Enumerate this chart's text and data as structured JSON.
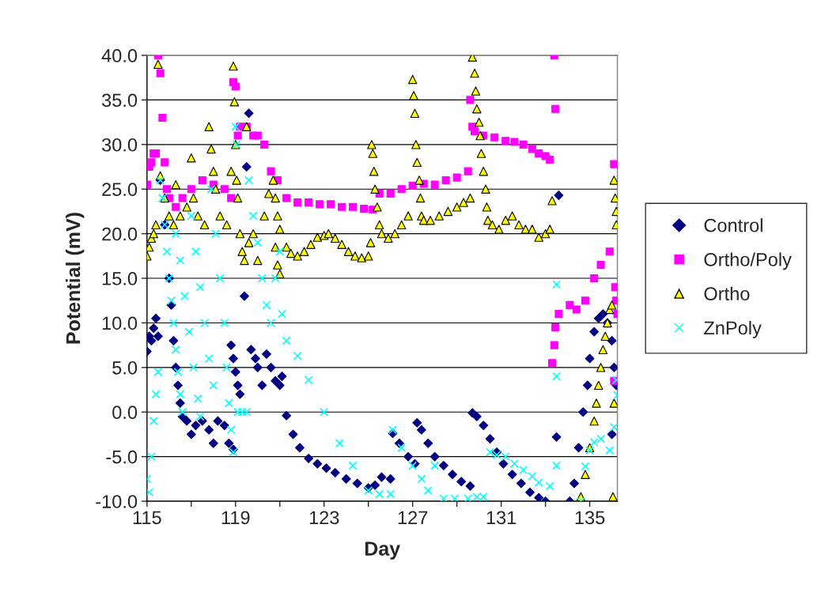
{
  "chart_data": {
    "type": "scatter",
    "xlabel": "Day",
    "ylabel": "Potential (mV)",
    "xlim": [
      115,
      136.25
    ],
    "ylim": [
      -10,
      40
    ],
    "xticks": [
      115,
      {
        "value": 117,
        "label": null
      },
      119,
      {
        "value": 121,
        "label": null
      },
      123,
      {
        "value": 125,
        "label": null
      },
      127,
      {
        "value": 129,
        "label": null
      },
      131,
      {
        "value": 133,
        "label": null
      },
      135
    ],
    "yticks": [
      {
        "value": -10,
        "label": "-10.0"
      },
      {
        "value": -5,
        "label": "-5.0"
      },
      {
        "value": 0,
        "label": "0.0"
      },
      {
        "value": 5,
        "label": "5.0"
      },
      {
        "value": 10,
        "label": "10.0"
      },
      {
        "value": 15,
        "label": "15.0"
      },
      {
        "value": 20,
        "label": "20.0"
      },
      {
        "value": 25,
        "label": "25.0"
      },
      {
        "value": 30,
        "label": "30.0"
      },
      {
        "value": 35,
        "label": "35.0"
      },
      {
        "value": 40,
        "label": "40.0"
      }
    ],
    "grid": "y",
    "legend": "right",
    "series": [
      {
        "name": "Control",
        "color": "#000080",
        "marker": "diamond",
        "x": [
          115.0,
          115.1,
          115.2,
          115.3,
          115.4,
          115.5,
          115.6,
          115.8,
          116.0,
          116.1,
          116.2,
          116.3,
          116.4,
          116.5,
          116.6,
          116.8,
          117.0,
          117.2,
          117.5,
          117.8,
          118.0,
          118.2,
          118.5,
          118.7,
          118.9,
          118.8,
          118.9,
          119.0,
          119.1,
          119.2,
          119.4,
          119.5,
          119.6,
          119.7,
          119.9,
          120.0,
          120.2,
          120.4,
          120.6,
          120.8,
          121.0,
          121.1,
          121.3,
          121.6,
          121.9,
          122.3,
          122.7,
          123.1,
          123.5,
          124.0,
          124.5,
          125.0,
          125.3,
          125.6,
          126.0,
          126.1,
          126.4,
          126.8,
          127.1,
          127.2,
          127.4,
          127.7,
          128.0,
          128.4,
          128.8,
          129.2,
          129.6,
          129.7,
          129.9,
          130.2,
          130.5,
          130.8,
          131.1,
          131.5,
          131.9,
          132.3,
          132.7,
          133.0,
          133.5,
          133.6,
          134.1,
          134.3,
          134.5,
          134.7,
          134.9,
          135.0,
          135.2,
          135.4,
          135.6,
          135.8,
          136.0,
          136.1,
          136.2,
          136.0
        ],
        "values": [
          6.8,
          8.5,
          8,
          9.4,
          10.5,
          8.5,
          26,
          21,
          15,
          12,
          8,
          5,
          3,
          1,
          -0.5,
          -1,
          -2.5,
          -1.5,
          -1,
          -2,
          -3.5,
          -1,
          -1.5,
          -3.5,
          -4.2,
          7.5,
          6,
          4.5,
          3,
          2,
          13,
          27.5,
          33.5,
          7,
          6,
          5,
          3,
          6.5,
          5,
          3.5,
          3,
          4,
          -0.4,
          -2.5,
          -4,
          -5.2,
          -5.8,
          -6.3,
          -6.8,
          -7.5,
          -8,
          -8.5,
          -8.2,
          -7.3,
          -7.5,
          -2.4,
          -3.5,
          -5,
          -5.8,
          -1.2,
          -2,
          -3.5,
          -5,
          -6,
          -7,
          -7.8,
          -8.3,
          -0.1,
          -0.5,
          -1.5,
          -3,
          -4.5,
          -5.8,
          -7,
          -8,
          -9,
          -9.6,
          -10,
          -2.8,
          24.3,
          -10,
          -8,
          -4,
          0,
          3,
          6,
          9,
          10.5,
          11,
          10,
          8,
          5,
          3,
          -2.5
        ]
      },
      {
        "name": "Ortho/Poly",
        "color": "#ff00ff",
        "marker": "square",
        "x": [
          115.0,
          115.1,
          115.2,
          115.3,
          115.4,
          115.5,
          115.6,
          115.7,
          115.8,
          115.9,
          116.0,
          116.3,
          116.6,
          117.0,
          117.5,
          118.0,
          118.5,
          118.8,
          118.9,
          119.0,
          119.1,
          119.2,
          119.5,
          119.8,
          120.0,
          120.3,
          120.6,
          120.9,
          121.3,
          121.8,
          122.3,
          122.8,
          123.3,
          123.8,
          124.3,
          124.8,
          125.2,
          125.5,
          126.0,
          126.5,
          127.0,
          127.5,
          128.0,
          128.5,
          129.0,
          129.5,
          129.6,
          129.7,
          129.8,
          130.2,
          130.7,
          131.2,
          131.6,
          132.0,
          132.4,
          132.7,
          133.0,
          133.2,
          133.4,
          133.45,
          133.3,
          133.4,
          133.45,
          133.6,
          134.1,
          134.4,
          134.8,
          135.2,
          135.5,
          135.9,
          136.1,
          136.15,
          136.2,
          136.1,
          136.25
        ],
        "values": [
          25.5,
          27.5,
          28,
          29,
          29,
          40,
          38,
          33,
          28,
          25,
          24,
          23,
          24,
          25,
          26,
          25.5,
          25,
          24,
          37,
          36.5,
          31,
          32,
          32,
          31,
          31,
          30,
          27,
          26,
          24,
          23.5,
          23.5,
          23.3,
          23.3,
          23,
          23,
          22.8,
          22.7,
          24.5,
          24.5,
          25,
          25.4,
          25.6,
          25.5,
          26,
          26.3,
          27,
          35,
          32,
          31.5,
          31,
          30.8,
          30.4,
          30.3,
          30,
          29.5,
          29,
          28.7,
          28.3,
          40,
          34,
          5.5,
          7.5,
          9.5,
          11,
          12,
          11.5,
          12.5,
          15,
          16.5,
          18,
          27.8,
          14,
          12.5,
          3.5,
          11
        ]
      },
      {
        "name": "Ortho",
        "color": "#ffff00",
        "marker": "triangle",
        "x": [
          115.0,
          115.1,
          115.2,
          115.3,
          115.4,
          115.5,
          115.6,
          115.8,
          116.0,
          116.2,
          116.3,
          116.5,
          116.8,
          117.0,
          117.1,
          117.3,
          117.6,
          117.8,
          117.9,
          118.0,
          118.1,
          118.3,
          118.6,
          118.8,
          118.9,
          118.95,
          119.0,
          119.05,
          119.1,
          119.2,
          119.3,
          119.4,
          119.6,
          119.5,
          119.8,
          120.0,
          120.3,
          120.5,
          120.7,
          120.8,
          120.9,
          121.0,
          120.8,
          120.9,
          121.0,
          121.3,
          121.5,
          121.8,
          122.1,
          122.4,
          122.7,
          123.0,
          123.2,
          123.5,
          123.8,
          124.1,
          124.4,
          124.7,
          125.0,
          125.1,
          125.15,
          125.2,
          125.25,
          125.3,
          125.4,
          125.5,
          125.6,
          125.9,
          126.2,
          126.5,
          126.8,
          127.0,
          127.05,
          127.1,
          127.15,
          127.2,
          127.3,
          127.35,
          127.4,
          127.5,
          127.8,
          128.2,
          128.6,
          129.0,
          129.3,
          129.6,
          129.7,
          129.8,
          129.85,
          129.9,
          130.0,
          130.05,
          130.1,
          130.2,
          130.3,
          130.35,
          130.4,
          130.6,
          130.9,
          131.2,
          131.5,
          131.8,
          132.1,
          132.4,
          132.7,
          133.0,
          133.2,
          133.3,
          134.6,
          134.8,
          135.0,
          135.2,
          135.3,
          135.4,
          135.5,
          135.6,
          135.7,
          135.8,
          135.9,
          136.0,
          136.1,
          136.05,
          136.1,
          136.15,
          136.2,
          136.2
        ],
        "values": [
          17.5,
          18.5,
          19.5,
          20,
          21,
          39,
          26.5,
          24,
          22,
          21,
          25.5,
          22,
          23,
          28.5,
          24,
          22,
          21,
          32,
          29.5,
          27,
          25,
          22,
          21,
          27,
          38.8,
          34.8,
          30,
          26,
          24,
          20,
          18,
          17,
          19,
          32,
          20,
          17,
          22,
          24.5,
          26,
          24,
          22,
          20.5,
          18.5,
          16.5,
          15.5,
          18.5,
          17.8,
          17.5,
          18,
          18.8,
          19.6,
          19.8,
          20,
          19.5,
          18.8,
          18,
          17.5,
          17.3,
          17.5,
          19,
          30,
          29,
          27,
          25,
          23,
          21,
          20,
          19.5,
          20,
          21,
          22,
          37.3,
          35.5,
          33.5,
          30,
          28,
          26,
          24,
          22,
          21.5,
          21.5,
          22,
          22.5,
          23,
          23.5,
          24,
          39.8,
          38,
          36,
          34,
          32.5,
          31,
          29,
          27,
          25,
          23,
          21.5,
          21,
          20.5,
          21.5,
          22,
          21,
          20.5,
          20.5,
          19.6,
          20,
          20.5,
          23.7,
          -9.5,
          -7,
          -4,
          -1,
          1,
          3,
          5,
          7,
          8.5,
          10,
          11.5,
          12,
          1,
          -9.5,
          26,
          24,
          22.5,
          21
        ]
      },
      {
        "name": "ZnPoly",
        "color": "#00ffff",
        "marker": "cross",
        "x": [
          115.0,
          115.1,
          115.2,
          115.3,
          115.4,
          115.5,
          115.6,
          115.7,
          115.8,
          115.9,
          116.0,
          116.1,
          116.2,
          116.3,
          116.4,
          116.5,
          116.6,
          116.3,
          116.5,
          116.7,
          116.9,
          117.1,
          117.3,
          117.4,
          117.0,
          117.2,
          117.4,
          117.6,
          117.8,
          118.0,
          117.9,
          118.1,
          118.3,
          118.5,
          118.6,
          118.7,
          118.8,
          118.9,
          119.0,
          119.05,
          119.1,
          119.3,
          119.5,
          119.6,
          119.8,
          120.0,
          120.2,
          120.4,
          120.6,
          120.8,
          121.0,
          121.1,
          121.3,
          121.8,
          122.3,
          123.0,
          123.7,
          124.3,
          125.0,
          125.5,
          126.0,
          126.1,
          126.5,
          127.0,
          127.4,
          127.7,
          128.0,
          128.4,
          128.9,
          129.5,
          129.9,
          130.2,
          130.5,
          130.8,
          131.2,
          131.6,
          132.0,
          132.4,
          132.7,
          133.2,
          133.5,
          133.5,
          133.5,
          134.6,
          134.8,
          135.0,
          135.2,
          135.5,
          135.9,
          136.1,
          136.2,
          136.25
        ],
        "values": [
          -7.5,
          -9,
          -5,
          -1,
          2,
          4.5,
          26,
          24,
          21,
          18,
          15,
          12.5,
          10,
          7,
          4.5,
          2,
          0,
          20,
          17,
          13,
          9,
          5,
          1.5,
          -0.5,
          22,
          18,
          14,
          10,
          6,
          3,
          25,
          20,
          15,
          10,
          5,
          1,
          -2,
          -4.5,
          32,
          30,
          0,
          0,
          0,
          26,
          22,
          19,
          15,
          12,
          10,
          15,
          18,
          11,
          8,
          6.3,
          3.6,
          0,
          -3.5,
          -6,
          -8.8,
          -9.2,
          -9.2,
          -2,
          -4,
          -6,
          -7.5,
          -8.8,
          -6,
          -9.7,
          -9.7,
          -9.7,
          -9.5,
          -9.5,
          -4.5,
          -4.8,
          -5,
          -5.8,
          -6.5,
          -7.2,
          -7.9,
          -8.3,
          14.3,
          4,
          -6,
          -10,
          -6.1,
          -4.3,
          -3.4,
          -3,
          -4.3,
          -1.7,
          3.6,
          1.9
        ]
      }
    ]
  }
}
